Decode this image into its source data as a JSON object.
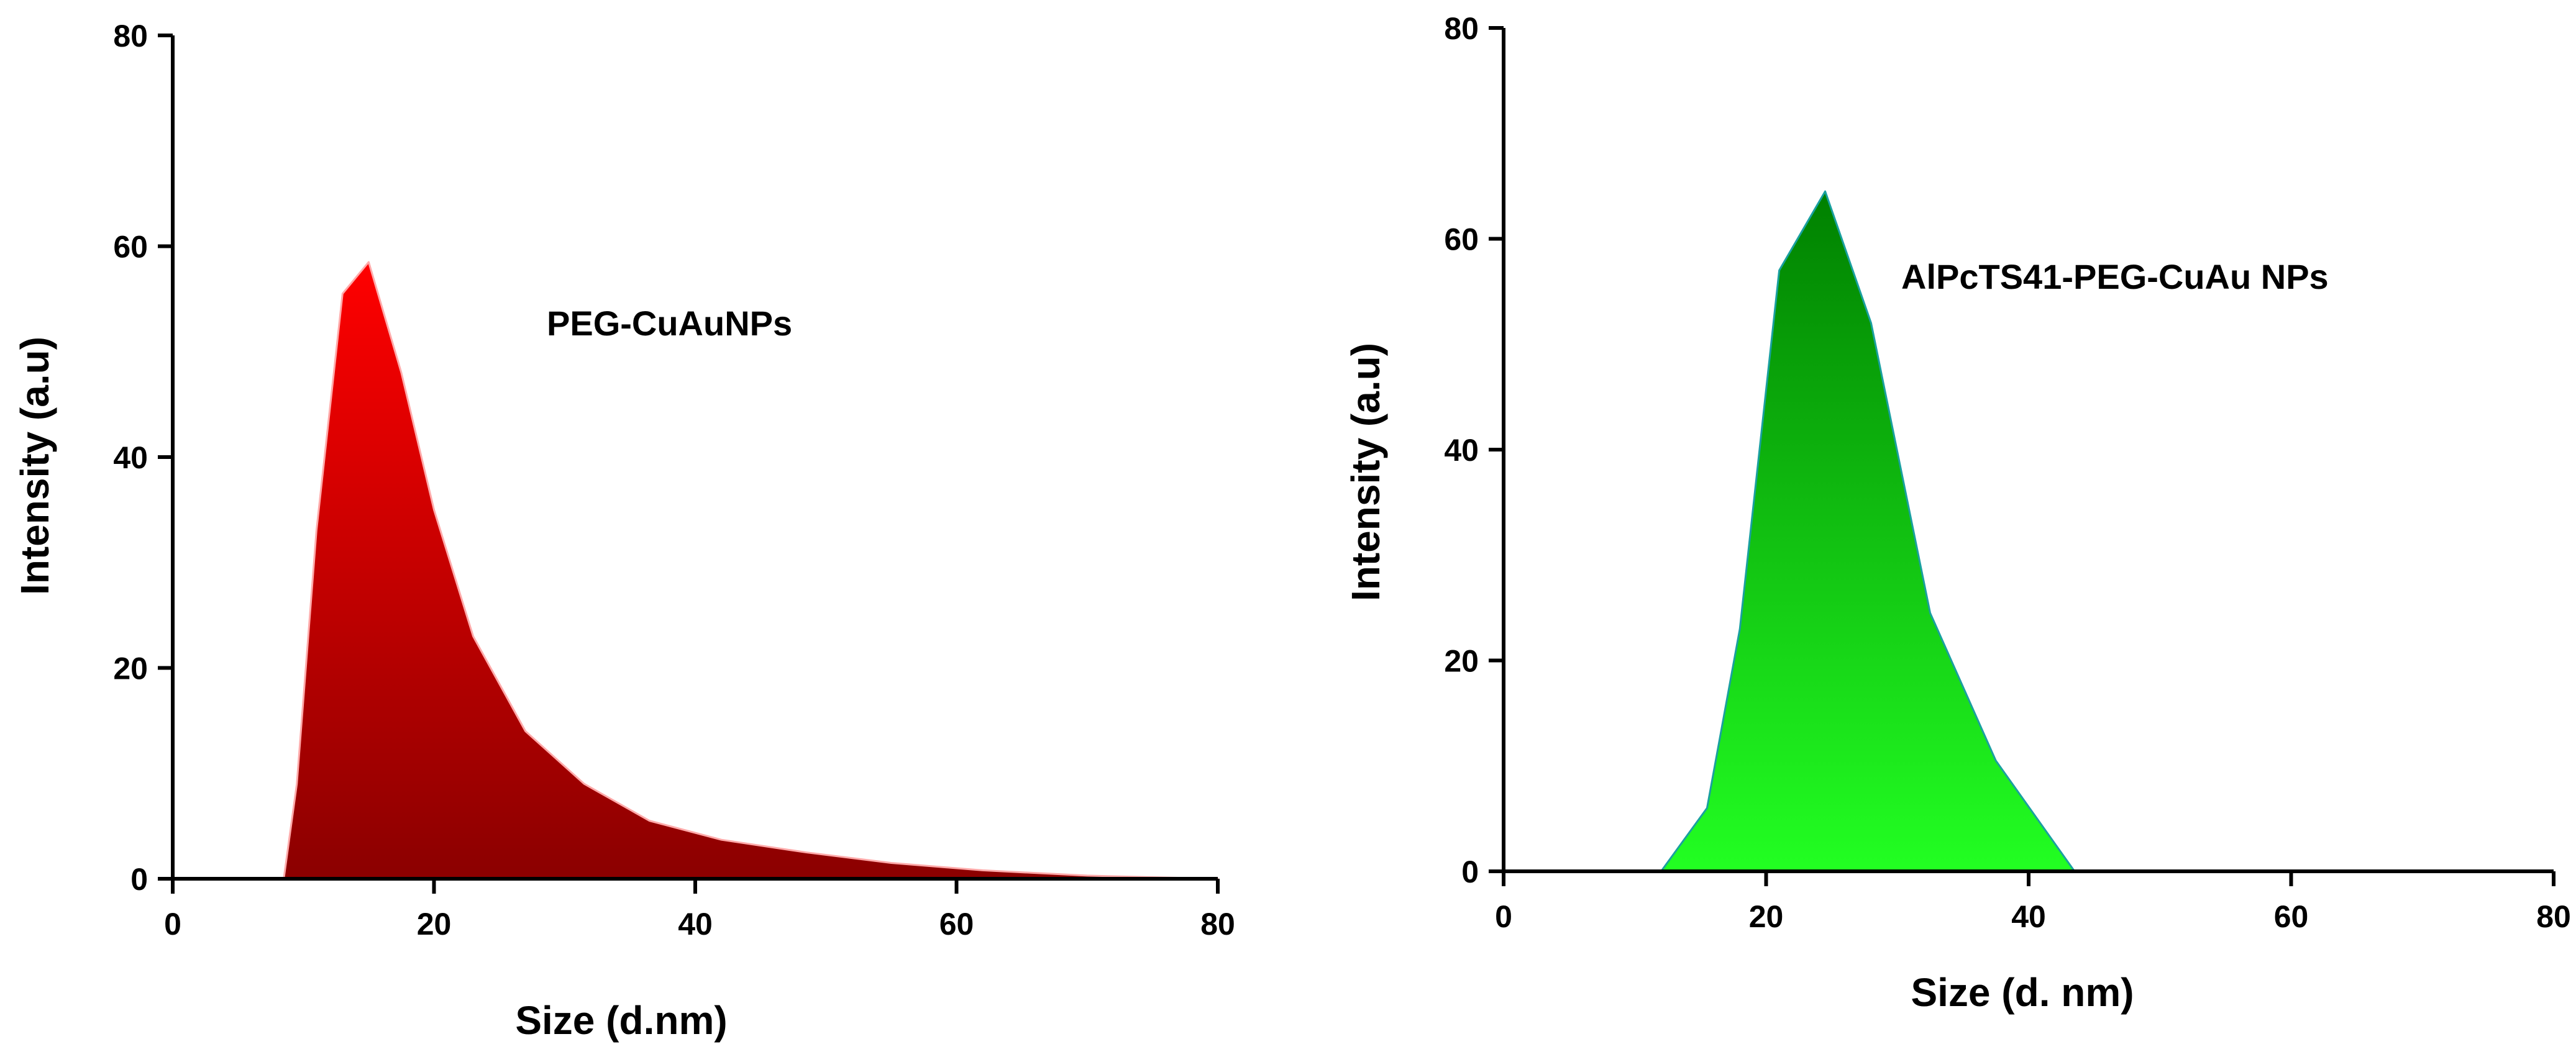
{
  "chart_data": [
    {
      "type": "area",
      "xlabel": "Size (d.nm)",
      "ylabel": "Intensity (a.u)",
      "annotation": "PEG-CuAuNPs",
      "xlim": [
        0,
        80
      ],
      "ylim": [
        0,
        80
      ],
      "xticks": [
        0,
        20,
        40,
        60,
        80
      ],
      "yticks": [
        0,
        20,
        40,
        60,
        80
      ],
      "color_top": "#ff0000",
      "color_bottom": "#8b0000",
      "outline": "#ffaaaa",
      "x": [
        8.5,
        9.5,
        11,
        13,
        15,
        17.5,
        20,
        23,
        27,
        31.5,
        36.5,
        42,
        48.5,
        55,
        62,
        70,
        80
      ],
      "y": [
        0,
        9,
        33,
        55.5,
        58.5,
        48,
        35,
        23,
        14,
        9,
        5.5,
        3.7,
        2.5,
        1.5,
        0.8,
        0.3,
        0
      ]
    },
    {
      "type": "area",
      "xlabel": "Size (d. nm)",
      "ylabel": "Intensity (a.u)",
      "annotation": "AlPcTS41-PEG-CuAu NPs",
      "xlim": [
        0,
        80
      ],
      "ylim": [
        0,
        80
      ],
      "xticks": [
        0,
        20,
        40,
        60,
        80
      ],
      "yticks": [
        0,
        20,
        40,
        60,
        80
      ],
      "color_top": "#008000",
      "color_bottom": "#22ff22",
      "outline": "#1aa0a0",
      "x": [
        12,
        15.5,
        18,
        21,
        24.5,
        28,
        32.5,
        37.5,
        43.5
      ],
      "y": [
        0,
        6,
        23,
        57,
        64.5,
        52,
        24.5,
        10.5,
        0
      ]
    }
  ]
}
